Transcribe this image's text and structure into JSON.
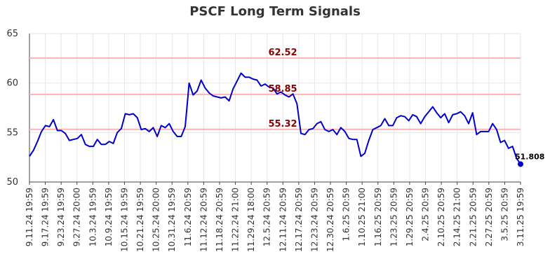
{
  "chart_data": {
    "type": "line",
    "title": "PSCF Long Term Signals",
    "xlabel": "",
    "ylabel": "",
    "ylim": [
      50,
      65
    ],
    "yticks": [
      "50",
      "55",
      "60",
      "65"
    ],
    "grid": true,
    "line_color": "#0000cc",
    "reference_color": "#ffb3b3",
    "reference_label_color": "#8b0000",
    "x_tick_labels": [
      "9.11.24 19:59",
      "9.17.24 19:59",
      "9.23.24 19:59",
      "9.27.24 20:00",
      "10.3.24 19:59",
      "10.9.24 19:59",
      "10.15.24 19:59",
      "10.21.24 19:59",
      "10.25.24 20:00",
      "10.31.24 19:59",
      "11.6.24 20:59",
      "11.12.24 20:59",
      "11.18.24 20:59",
      "11.22.24 21:00",
      "11.29.24 18:00",
      "12.5.24 20:59",
      "12.11.24 20:59",
      "12.17.24 20:59",
      "12.23.24 20:59",
      "12.30.24 20:59",
      "1.6.25 20:59",
      "1.10.25 21:00",
      "1.16.25 20:59",
      "1.23.25 20:59",
      "1.29.25 20:59",
      "2.4.25 20:59",
      "2.10.25 20:59",
      "2.14.25 21:00",
      "2.21.25 20:59",
      "2.27.25 20:59",
      "3.5.25 20:59",
      "3.11.25 19:59"
    ],
    "reference_lines": [
      {
        "value": 62.52,
        "label": "62.52"
      },
      {
        "value": 58.85,
        "label": "58.85"
      },
      {
        "value": 55.32,
        "label": "55.32"
      }
    ],
    "last_value_label": "51.808",
    "series": [
      {
        "values": [
          52.6,
          53.2,
          54.1,
          55.1,
          55.7,
          55.6,
          56.3,
          55.2,
          55.2,
          54.9,
          54.2,
          54.3,
          54.4,
          54.8,
          53.8,
          53.6,
          53.6,
          54.3,
          53.8,
          53.8,
          54.1,
          53.9,
          55.0,
          55.4,
          56.9,
          56.8,
          56.9,
          56.5,
          55.3,
          55.4,
          55.1,
          55.5,
          54.6,
          55.7,
          55.5,
          55.9,
          55.1,
          54.6,
          54.6,
          55.6,
          60.0,
          58.8,
          59.2,
          60.3,
          59.5,
          59.0,
          58.7,
          58.6,
          58.5,
          58.6,
          58.2,
          59.4,
          60.2,
          61.0,
          60.6,
          60.6,
          60.4,
          60.3,
          59.7,
          59.9,
          59.6,
          59.5,
          58.9,
          59.1,
          58.8,
          58.6,
          58.9,
          57.9,
          54.9,
          54.8,
          55.3,
          55.4,
          55.9,
          56.1,
          55.3,
          55.1,
          55.3,
          54.8,
          55.5,
          55.1,
          54.4,
          54.3,
          54.3,
          52.6,
          52.9,
          54.2,
          55.3,
          55.5,
          55.7,
          56.4,
          55.7,
          55.7,
          56.5,
          56.7,
          56.6,
          56.2,
          56.8,
          56.6,
          55.9,
          56.6,
          57.1,
          57.6,
          57.0,
          56.5,
          56.9,
          56.0,
          56.8,
          56.9,
          57.1,
          56.7,
          55.9,
          57.0,
          54.8,
          55.1,
          55.1,
          55.1,
          55.9,
          55.3,
          54.0,
          54.2,
          53.4,
          53.6,
          52.4,
          51.808
        ]
      }
    ]
  }
}
